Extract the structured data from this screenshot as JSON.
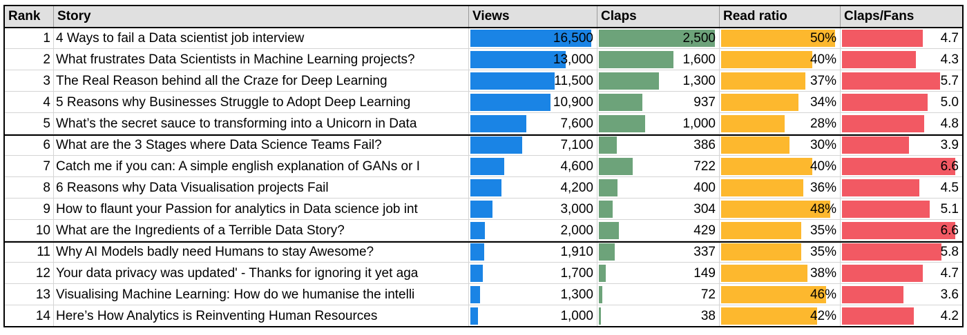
{
  "colors": {
    "views": "#1a84e5",
    "claps": "#6da37a",
    "read": "#fdb82e",
    "fans": "#f25963"
  },
  "headers": {
    "rank": "Rank",
    "story": "Story",
    "views": "Views",
    "claps": "Claps",
    "read": "Read ratio",
    "fans": "Claps/Fans"
  },
  "rows": [
    {
      "rank": "1",
      "story": "4 Ways to fail a Data scientist job interview",
      "views": "16,500",
      "claps": "2,500",
      "read": "50%",
      "fans": "4.7",
      "views_n": 16500,
      "claps_n": 2500,
      "read_n": 50,
      "fans_n": 4.7
    },
    {
      "rank": "2",
      "story": "What frustrates Data Scientists in Machine Learning projects?",
      "views": "13,000",
      "claps": "1,600",
      "read": "40%",
      "fans": "4.3",
      "views_n": 13000,
      "claps_n": 1600,
      "read_n": 40,
      "fans_n": 4.3
    },
    {
      "rank": "3",
      "story": "The Real Reason behind all the Craze for Deep Learning",
      "views": "11,500",
      "claps": "1,300",
      "read": "37%",
      "fans": "5.7",
      "views_n": 11500,
      "claps_n": 1300,
      "read_n": 37,
      "fans_n": 5.7
    },
    {
      "rank": "4",
      "story": "5 Reasons why Businesses Struggle to Adopt Deep Learning",
      "views": "10,900",
      "claps": "937",
      "read": "34%",
      "fans": "5.0",
      "views_n": 10900,
      "claps_n": 937,
      "read_n": 34,
      "fans_n": 5.0
    },
    {
      "rank": "5",
      "story": "What’s the secret sauce to transforming into a Unicorn in Data",
      "views": "7,600",
      "claps": "1,000",
      "read": "28%",
      "fans": "4.8",
      "views_n": 7600,
      "claps_n": 1000,
      "read_n": 28,
      "fans_n": 4.8
    },
    {
      "rank": "6",
      "story": "What are the 3 Stages where Data Science Teams Fail?",
      "views": "7,100",
      "claps": "386",
      "read": "30%",
      "fans": "3.9",
      "views_n": 7100,
      "claps_n": 386,
      "read_n": 30,
      "fans_n": 3.9
    },
    {
      "rank": "7",
      "story": "Catch me if you can: A simple english explanation of GANs or I",
      "views": "4,600",
      "claps": "722",
      "read": "40%",
      "fans": "6.6",
      "views_n": 4600,
      "claps_n": 722,
      "read_n": 40,
      "fans_n": 6.6
    },
    {
      "rank": "8",
      "story": "6 Reasons why Data Visualisation projects Fail",
      "views": "4,200",
      "claps": "400",
      "read": "36%",
      "fans": "4.5",
      "views_n": 4200,
      "claps_n": 400,
      "read_n": 36,
      "fans_n": 4.5
    },
    {
      "rank": "9",
      "story": "How to flaunt your Passion for analytics in Data science job int",
      "views": "3,000",
      "claps": "304",
      "read": "48%",
      "fans": "5.1",
      "views_n": 3000,
      "claps_n": 304,
      "read_n": 48,
      "fans_n": 5.1
    },
    {
      "rank": "10",
      "story": "What are the Ingredients of a Terrible Data Story?",
      "views": "2,000",
      "claps": "429",
      "read": "35%",
      "fans": "6.6",
      "views_n": 2000,
      "claps_n": 429,
      "read_n": 35,
      "fans_n": 6.6
    },
    {
      "rank": "11",
      "story": "Why AI Models badly need Humans to stay Awesome?",
      "views": "1,910",
      "claps": "337",
      "read": "35%",
      "fans": "5.8",
      "views_n": 1910,
      "claps_n": 337,
      "read_n": 35,
      "fans_n": 5.8
    },
    {
      "rank": "12",
      "story": "Your data privacy was updated' - Thanks for ignoring it yet aga",
      "views": "1,700",
      "claps": "149",
      "read": "38%",
      "fans": "4.7",
      "views_n": 1700,
      "claps_n": 149,
      "read_n": 38,
      "fans_n": 4.7
    },
    {
      "rank": "13",
      "story": "Visualising Machine Learning: How do we humanise the intelli",
      "views": "1,300",
      "claps": "72",
      "read": "46%",
      "fans": "3.6",
      "views_n": 1300,
      "claps_n": 72,
      "read_n": 46,
      "fans_n": 3.6
    },
    {
      "rank": "14",
      "story": "Here’s How Analytics is Reinventing Human Resources",
      "views": "1,000",
      "claps": "38",
      "read": "42%",
      "fans": "4.2",
      "views_n": 1000,
      "claps_n": 38,
      "read_n": 42,
      "fans_n": 4.2
    }
  ]
}
